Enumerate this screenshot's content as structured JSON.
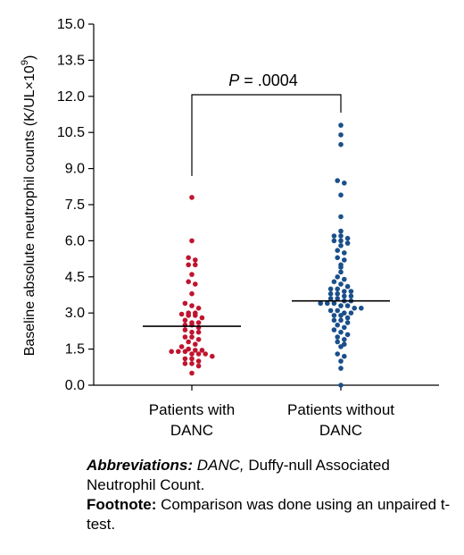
{
  "chart_data": {
    "type": "scatter",
    "ylabel_main": "Baseline absolute neutrophil counts (K/UL×10",
    "ylabel_sup": "9",
    "ylabel_end": ")",
    "ylim": [
      0,
      15
    ],
    "yticks": [
      "0.0",
      "1.5",
      "3.0",
      "4.5",
      "6.0",
      "7.5",
      "9.0",
      "10.5",
      "12.0",
      "13.5",
      "15.0"
    ],
    "ytick_values": [
      0,
      1.5,
      3,
      4.5,
      6,
      7.5,
      9,
      10.5,
      12,
      13.5,
      15
    ],
    "categories": [
      {
        "line1": "Patients with",
        "line2": "DANC"
      },
      {
        "line1": "Patients without",
        "line2": "DANC"
      }
    ],
    "series": [
      {
        "color": "#c0142e",
        "median": 2.45,
        "values": [
          7.8,
          6.0,
          5.3,
          5.2,
          5.0,
          5.0,
          4.6,
          4.3,
          4.2,
          3.8,
          3.4,
          3.3,
          3.2,
          3.0,
          3.0,
          2.95,
          2.9,
          2.9,
          2.8,
          2.7,
          2.6,
          2.6,
          2.5,
          2.5,
          2.4,
          2.3,
          2.2,
          2.2,
          2.0,
          2.0,
          1.9,
          1.8,
          1.7,
          1.6,
          1.5,
          1.45,
          1.45,
          1.4,
          1.4,
          1.4,
          1.3,
          1.3,
          1.3,
          1.2,
          1.1,
          1.1,
          1.0,
          0.9,
          0.9,
          0.8,
          0.5
        ]
      },
      {
        "color": "#1a4f8a",
        "median": 3.5,
        "values": [
          10.8,
          10.4,
          10.0,
          8.5,
          8.4,
          7.9,
          7.0,
          6.4,
          6.2,
          6.2,
          6.1,
          6.0,
          6.0,
          5.9,
          5.8,
          5.6,
          5.5,
          5.3,
          5.2,
          5.0,
          4.9,
          4.7,
          4.5,
          4.4,
          4.3,
          4.2,
          4.1,
          4.0,
          4.0,
          3.9,
          3.9,
          3.8,
          3.8,
          3.7,
          3.7,
          3.6,
          3.6,
          3.5,
          3.5,
          3.4,
          3.4,
          3.4,
          3.3,
          3.3,
          3.2,
          3.2,
          3.1,
          3.1,
          3.0,
          3.0,
          2.9,
          2.9,
          2.8,
          2.7,
          2.7,
          2.6,
          2.5,
          2.4,
          2.3,
          2.2,
          2.1,
          2.0,
          1.9,
          1.8,
          1.7,
          1.6,
          1.3,
          1.2,
          1.0,
          0.7,
          0.0
        ]
      }
    ],
    "annotation": {
      "italic": "P",
      "rest": " = .0004"
    }
  },
  "notes": {
    "abbrev_label": "Abbreviations:",
    "abbrev_term": "DANC,",
    "abbrev_text": " Duffy-null Associated Neutrophil Count.",
    "footnote_label": "Footnote:",
    "footnote_text": " Comparison was done using an unpaired t-test."
  }
}
